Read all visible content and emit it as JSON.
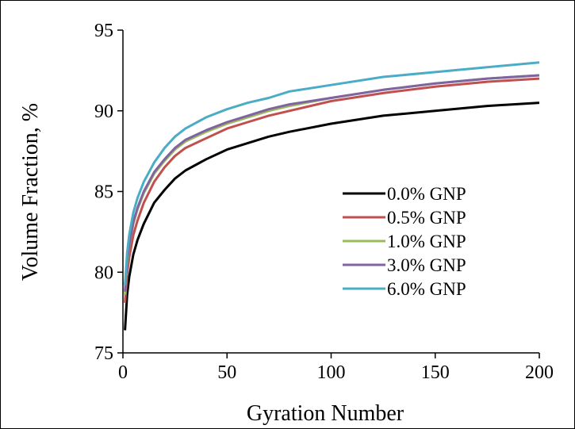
{
  "chart_data": {
    "type": "line",
    "title": "",
    "xlabel": "Gyration Number",
    "ylabel": "Volume Fraction, %",
    "xlim": [
      0,
      200
    ],
    "ylim": [
      75,
      95
    ],
    "xticks": [
      0,
      50,
      100,
      150,
      200
    ],
    "yticks": [
      75,
      80,
      85,
      90,
      95
    ],
    "xtick_labels": [
      "0",
      "50",
      "100",
      "150",
      "200"
    ],
    "ytick_labels": [
      "75",
      "80",
      "85",
      "90",
      "95"
    ],
    "grid": false,
    "legend_position": "inside-lower-right",
    "x": [
      1,
      2,
      3,
      5,
      7,
      10,
      15,
      20,
      25,
      30,
      40,
      50,
      60,
      70,
      80,
      100,
      125,
      150,
      175,
      200
    ],
    "series": [
      {
        "name": "0.0% GNP",
        "color": "#000000",
        "values": [
          76.4,
          78.6,
          79.7,
          81.1,
          82.0,
          83.0,
          84.3,
          85.1,
          85.8,
          86.3,
          87.0,
          87.6,
          88.0,
          88.4,
          88.7,
          89.2,
          89.7,
          90.0,
          90.3,
          90.5
        ]
      },
      {
        "name": "0.5% GNP",
        "color": "#c0504d",
        "values": [
          78.1,
          79.9,
          80.9,
          82.3,
          83.2,
          84.3,
          85.6,
          86.5,
          87.2,
          87.7,
          88.3,
          88.9,
          89.3,
          89.7,
          90.0,
          90.6,
          91.1,
          91.5,
          91.8,
          92.0
        ]
      },
      {
        "name": "1.0% GNP",
        "color": "#9bbb59",
        "values": [
          78.6,
          80.5,
          81.6,
          83.0,
          83.9,
          84.9,
          86.1,
          86.9,
          87.6,
          88.1,
          88.7,
          89.2,
          89.6,
          90.0,
          90.3,
          90.8,
          91.3,
          91.7,
          92.0,
          92.2
        ]
      },
      {
        "name": "3.0% GNP",
        "color": "#8064a2",
        "values": [
          78.8,
          80.7,
          81.7,
          83.1,
          84.0,
          85.0,
          86.2,
          87.0,
          87.7,
          88.2,
          88.8,
          89.3,
          89.7,
          90.1,
          90.4,
          90.8,
          91.3,
          91.7,
          92.0,
          92.2
        ]
      },
      {
        "name": "6.0% GNP",
        "color": "#4bacc6",
        "values": [
          79.2,
          81.2,
          82.3,
          83.7,
          84.6,
          85.6,
          86.8,
          87.7,
          88.4,
          88.9,
          89.6,
          90.1,
          90.5,
          90.8,
          91.2,
          91.6,
          92.1,
          92.4,
          92.7,
          93.0
        ]
      }
    ]
  }
}
